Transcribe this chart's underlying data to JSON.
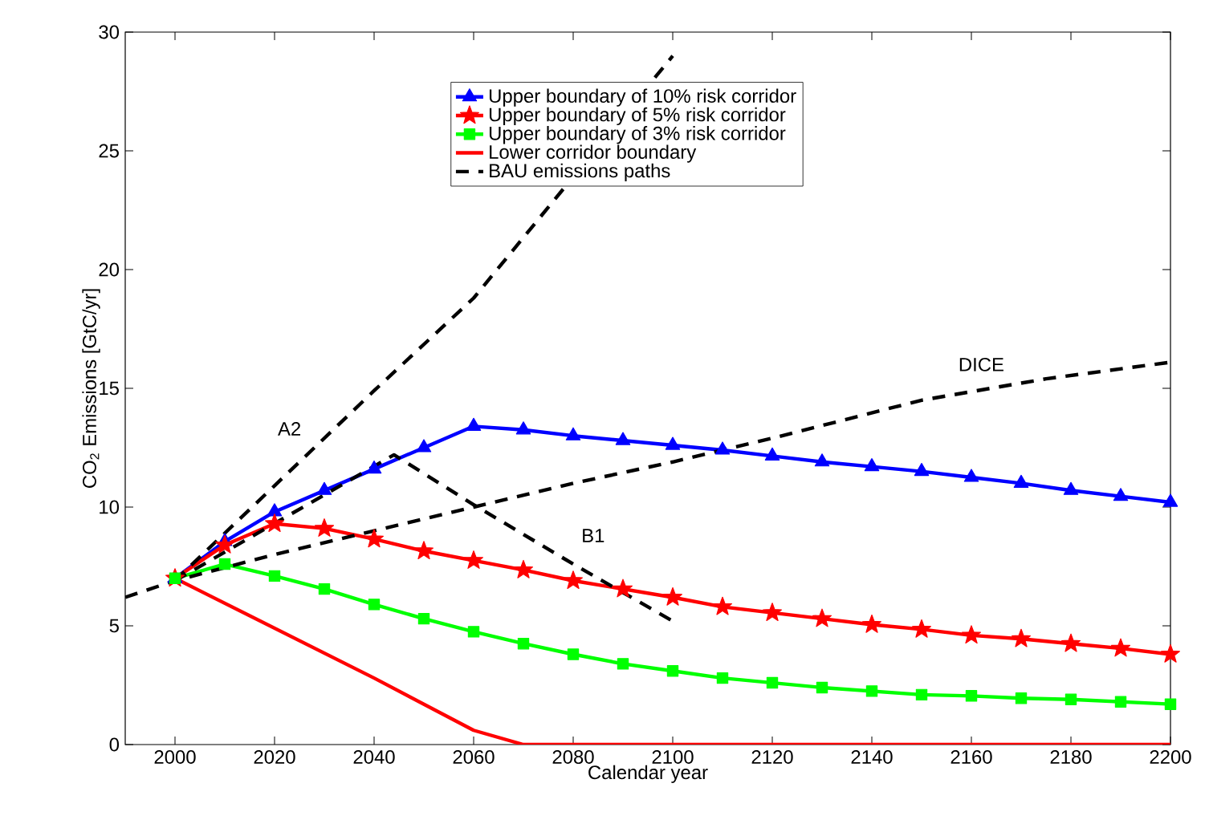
{
  "chart_data": {
    "type": "line",
    "xlabel": "Calendar year",
    "ylabel": "CO$_{2}$ Emissions [GtC/yr]",
    "xlim": [
      1990,
      2200
    ],
    "ylim": [
      0,
      30
    ],
    "xticks": [
      2000,
      2020,
      2040,
      2060,
      2080,
      2100,
      2120,
      2140,
      2160,
      2180,
      2200
    ],
    "yticks": [
      0,
      5,
      10,
      15,
      20,
      25,
      30
    ],
    "grid": false,
    "legend": "top",
    "series": [
      {
        "name": "Upper boundary of 10% risk corridor",
        "color": "#0000ff",
        "marker": "triangle",
        "line_style": "solid",
        "x": [
          2000,
          2010,
          2020,
          2030,
          2040,
          2050,
          2060,
          2070,
          2080,
          2090,
          2100,
          2110,
          2120,
          2130,
          2140,
          2150,
          2160,
          2170,
          2180,
          2190,
          2200
        ],
        "values": [
          7.0,
          8.55,
          9.8,
          10.7,
          11.6,
          12.5,
          13.4,
          13.25,
          13.0,
          12.8,
          12.6,
          12.4,
          12.15,
          11.9,
          11.7,
          11.5,
          11.25,
          11.0,
          10.7,
          10.45,
          10.2
        ]
      },
      {
        "name": "Upper boundary of 5% risk corridor",
        "color": "#ff0000",
        "marker": "star",
        "line_style": "solid",
        "x": [
          2000,
          2010,
          2020,
          2030,
          2040,
          2050,
          2060,
          2070,
          2080,
          2090,
          2100,
          2110,
          2120,
          2130,
          2140,
          2150,
          2160,
          2170,
          2180,
          2190,
          2200
        ],
        "values": [
          7.0,
          8.4,
          9.3,
          9.1,
          8.65,
          8.15,
          7.75,
          7.35,
          6.9,
          6.55,
          6.2,
          5.8,
          5.55,
          5.3,
          5.05,
          4.85,
          4.6,
          4.45,
          4.25,
          4.05,
          3.8
        ]
      },
      {
        "name": "Upper boundary of 3% risk corridor",
        "color": "#00ff00",
        "marker": "square",
        "line_style": "solid",
        "x": [
          2000,
          2010,
          2020,
          2030,
          2040,
          2050,
          2060,
          2070,
          2080,
          2090,
          2100,
          2110,
          2120,
          2130,
          2140,
          2150,
          2160,
          2170,
          2180,
          2190,
          2200
        ],
        "values": [
          7.0,
          7.6,
          7.1,
          6.55,
          5.9,
          5.3,
          4.75,
          4.25,
          3.8,
          3.4,
          3.1,
          2.8,
          2.6,
          2.4,
          2.25,
          2.1,
          2.05,
          1.95,
          1.9,
          1.8,
          1.7
        ]
      },
      {
        "name": "Lower corridor boundary",
        "color": "#ff0000",
        "marker": "none",
        "line_style": "solid",
        "x": [
          2000,
          2040,
          2060,
          2070,
          2200
        ],
        "values": [
          7.0,
          2.8,
          0.6,
          0,
          0
        ]
      },
      {
        "name": "BAU emissions paths",
        "color": "#000000",
        "marker": "none",
        "line_style": "dashed",
        "x": [
          2000,
          2020,
          2040,
          2060,
          2080,
          2100
        ],
        "values": [
          6.9,
          10.9,
          14.9,
          18.8,
          null,
          29.0
        ]
      },
      {
        "color": "#000000",
        "marker": "none",
        "line_style": "dashed",
        "x": [
          2000,
          2044,
          2060,
          2080,
          2100
        ],
        "values": [
          6.9,
          12.2,
          10.1,
          7.6,
          5.2
        ]
      },
      {
        "color": "#000000",
        "marker": "none",
        "line_style": "dashed",
        "x": [
          1990,
          2000,
          2020,
          2040,
          2060,
          2080,
          2100,
          2120,
          2150,
          2175,
          2200
        ],
        "values": [
          6.2,
          6.9,
          8.0,
          9.0,
          10.0,
          11.0,
          11.9,
          12.9,
          14.5,
          15.4,
          16.1
        ]
      }
    ],
    "annotations": [
      {
        "text": "A2",
        "x": 2023,
        "y": 13.3
      },
      {
        "text": "B1",
        "x": 2084,
        "y": 8.8
      },
      {
        "text": "DICE",
        "x": 2162,
        "y": 16.0
      }
    ]
  }
}
